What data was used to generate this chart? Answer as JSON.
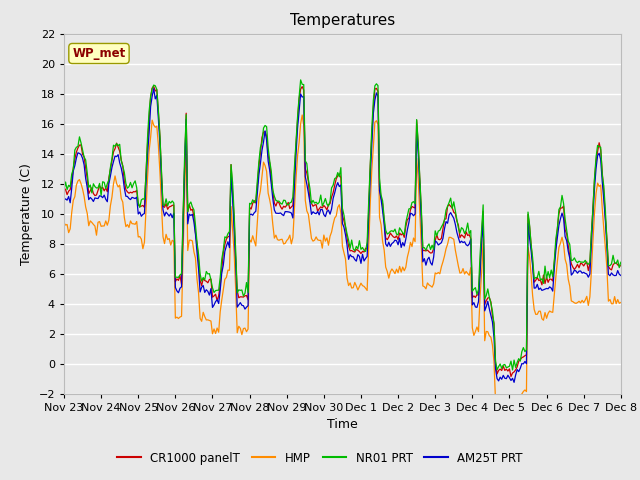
{
  "title": "Temperatures",
  "xlabel": "Time",
  "ylabel": "Temperature (C)",
  "ylim": [
    -2,
    22
  ],
  "yticks": [
    -2,
    0,
    2,
    4,
    6,
    8,
    10,
    12,
    14,
    16,
    18,
    20,
    22
  ],
  "annotation": "WP_met",
  "legend_labels": [
    "CR1000 panelT",
    "HMP",
    "NR01 PRT",
    "AM25T PRT"
  ],
  "legend_colors": [
    "#cc0000",
    "#ff8c00",
    "#00bb00",
    "#0000cc"
  ],
  "fig_bg": "#e8e8e8",
  "plot_bg": "#e8e8e8",
  "grid_color": "#ffffff",
  "x_tick_labels": [
    "Nov 23",
    "Nov 24",
    "Nov 25",
    "Nov 26",
    "Nov 27",
    "Nov 28",
    "Nov 29",
    "Nov 30",
    "Dec 1",
    "Dec 2",
    "Dec 3",
    "Dec 4",
    "Dec 5",
    "Dec 6",
    "Dec 7",
    "Dec 8"
  ],
  "x_tick_positions": [
    0,
    24,
    48,
    72,
    96,
    120,
    144,
    168,
    192,
    216,
    240,
    264,
    288,
    312,
    336,
    360
  ]
}
